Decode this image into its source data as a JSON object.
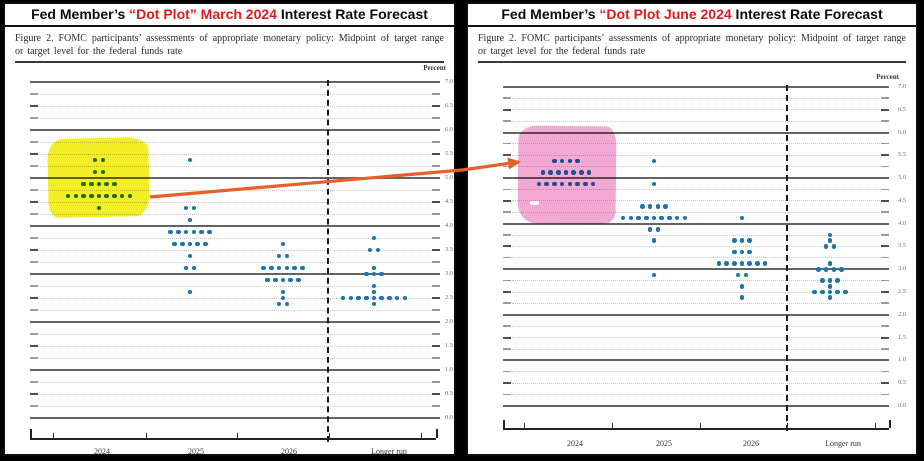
{
  "page": {
    "frame_color": "#000000"
  },
  "panels": [
    {
      "title": {
        "black_prefix": "Fed Member’s ",
        "red_text": "“Dot Plot” March 2024",
        "black_suffix": " Interest Rate Forecast"
      },
      "caption": "Figure 2.  FOMC participants’ assessments of appropriate monetary policy: Midpoint of target range or target level for the federal funds rate",
      "highlight": {
        "shape": "marker-blob",
        "color": "#f3ec1a",
        "over_column": "2024"
      }
    },
    {
      "title": {
        "black_prefix": "Fed Member’s ",
        "red_text": "“Dot Plot June 2024",
        "black_suffix": " Interest Rate Forecast"
      },
      "caption": "Figure 2.  FOMC participants’ assessments of appropriate monetary policy: Midpoint of target range or target level for the federal funds rate",
      "highlight": {
        "shape": "marker-blob",
        "color": "#f2a5d2",
        "over_column": "2024"
      }
    }
  ],
  "axis": {
    "unit_label": "Percent",
    "y_tick_labels": [
      "7.0",
      "6.5",
      "6.0",
      "5.5",
      "5.0",
      "4.5",
      "4.0",
      "3.5",
      "3.0",
      "2.5",
      "2.0",
      "1.5",
      "1.0",
      "0.5",
      "0.0"
    ],
    "x_categories": [
      "2024",
      "2025",
      "2026",
      "Longer run"
    ]
  },
  "annotation": {
    "arrow_color": "#e7602b",
    "arrow_meaning": "points from March 2024 dot cluster to June 2024 highlighted cluster"
  },
  "chart_data": [
    {
      "type": "scatter",
      "title": "FOMC Dot Plot — March 2024",
      "ylabel": "Percent",
      "ylim": [
        0,
        7
      ],
      "ytick_step": 0.5,
      "grid": "solid at integers, dotted at quarter points",
      "dot_color": "#1d74a6",
      "categories": [
        "2024",
        "2025",
        "2026",
        "Longer run"
      ],
      "dots": {
        "2024": [
          [
            5.375,
            2
          ],
          [
            5.125,
            2
          ],
          [
            4.875,
            5
          ],
          [
            4.625,
            9
          ],
          [
            4.375,
            1
          ]
        ],
        "2025": [
          [
            5.375,
            1
          ],
          [
            4.375,
            2
          ],
          [
            4.125,
            1
          ],
          [
            3.875,
            6
          ],
          [
            3.625,
            5
          ],
          [
            3.375,
            1
          ],
          [
            3.125,
            2
          ],
          [
            2.625,
            1
          ]
        ],
        "2026": [
          [
            3.625,
            1
          ],
          [
            3.375,
            2
          ],
          [
            3.125,
            6
          ],
          [
            2.875,
            5
          ],
          [
            2.625,
            1
          ],
          [
            2.5,
            1
          ],
          [
            2.375,
            2
          ]
        ],
        "Longer run": [
          [
            3.75,
            1
          ],
          [
            3.5,
            2
          ],
          [
            3.125,
            1
          ],
          [
            3.0,
            3
          ],
          [
            2.75,
            1
          ],
          [
            2.625,
            1
          ],
          [
            2.5,
            9
          ],
          [
            2.375,
            1
          ]
        ]
      }
    },
    {
      "type": "scatter",
      "title": "FOMC Dot Plot — June 2024",
      "ylabel": "Percent",
      "ylim": [
        0,
        7
      ],
      "ytick_step": 0.5,
      "grid": "solid at integers, dotted at quarter points",
      "dot_color": "#1d74a6",
      "categories": [
        "2024",
        "2025",
        "2026",
        "Longer run"
      ],
      "dots": {
        "2024": [
          [
            5.375,
            4
          ],
          [
            5.125,
            7
          ],
          [
            4.875,
            8
          ]
        ],
        "2025": [
          [
            5.375,
            1
          ],
          [
            4.875,
            1
          ],
          [
            4.375,
            4
          ],
          [
            4.125,
            9
          ],
          [
            3.875,
            2
          ],
          [
            3.625,
            1
          ],
          [
            2.875,
            1
          ]
        ],
        "2026": [
          [
            4.125,
            1
          ],
          [
            3.625,
            3
          ],
          [
            3.375,
            3
          ],
          [
            3.125,
            7
          ],
          [
            2.875,
            2
          ],
          [
            2.625,
            1
          ],
          [
            2.375,
            1
          ]
        ],
        "Longer run": [
          [
            3.75,
            1
          ],
          [
            3.625,
            1
          ],
          [
            3.5,
            2
          ],
          [
            3.125,
            1
          ],
          [
            3.0,
            4
          ],
          [
            2.75,
            3
          ],
          [
            2.625,
            1
          ],
          [
            2.5,
            5
          ],
          [
            2.375,
            1
          ]
        ]
      }
    }
  ]
}
